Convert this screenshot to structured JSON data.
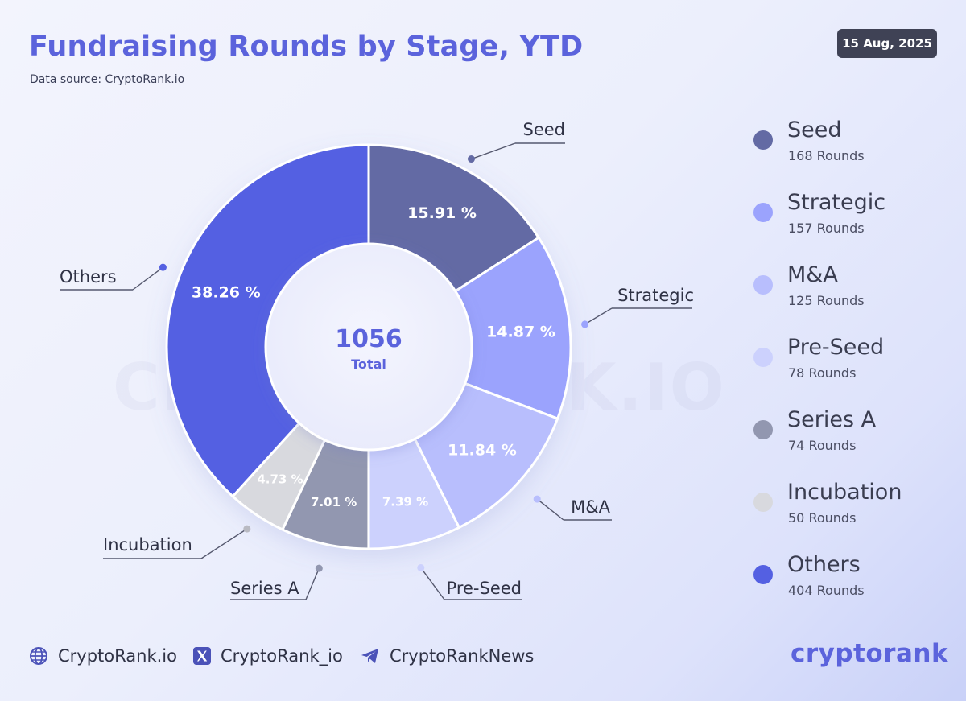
{
  "header": {
    "title": "Fundraising Rounds by Stage, YTD",
    "source": "Data source: CryptoRank.io",
    "date": "15 Aug, 2025"
  },
  "watermark": "CRYPTORANK.IO",
  "chart_data": {
    "type": "pie",
    "style": "donut",
    "center_value": "1056",
    "center_label": "Total",
    "categories": [
      "Seed",
      "Strategic",
      "M&A",
      "Pre-Seed",
      "Series A",
      "Incubation",
      "Others"
    ],
    "values": [
      15.91,
      14.87,
      11.84,
      7.39,
      7.01,
      4.73,
      38.26
    ],
    "value_labels": [
      "15.91 %",
      "14.87 %",
      "11.84 %",
      "7.39 %",
      "7.01 %",
      "4.73 %",
      "38.26 %"
    ],
    "colors": [
      "#636aa4",
      "#9ba3fd",
      "#b8befd",
      "#ccd1fd",
      "#9297b0",
      "#d8d9de",
      "#5460e2"
    ],
    "label_colors": [
      "#ffffff",
      "#ffffff",
      "#ffffff",
      "#ffffff",
      "#ffffff",
      "#ffffff",
      "#ffffff"
    ]
  },
  "legend": {
    "items": [
      {
        "name": "Seed",
        "count": "168 Rounds",
        "color": "#636aa4"
      },
      {
        "name": "Strategic",
        "count": "157 Rounds",
        "color": "#9ba3fd"
      },
      {
        "name": "M&A",
        "count": "125 Rounds",
        "color": "#b8befd"
      },
      {
        "name": "Pre-Seed",
        "count": "78 Rounds",
        "color": "#ccd1fd"
      },
      {
        "name": "Series A",
        "count": "74 Rounds",
        "color": "#9297b0"
      },
      {
        "name": "Incubation",
        "count": "50 Rounds",
        "color": "#d8d9de"
      },
      {
        "name": "Others",
        "count": "404 Rounds",
        "color": "#5460e2"
      }
    ]
  },
  "footer": {
    "website": "CryptoRank.io",
    "twitter": "CryptoRank_io",
    "telegram": "CryptoRankNews",
    "logo": "cryptorank"
  },
  "icons": {
    "website": "globe-icon",
    "twitter": "x-logo-icon",
    "telegram": "telegram-icon"
  }
}
